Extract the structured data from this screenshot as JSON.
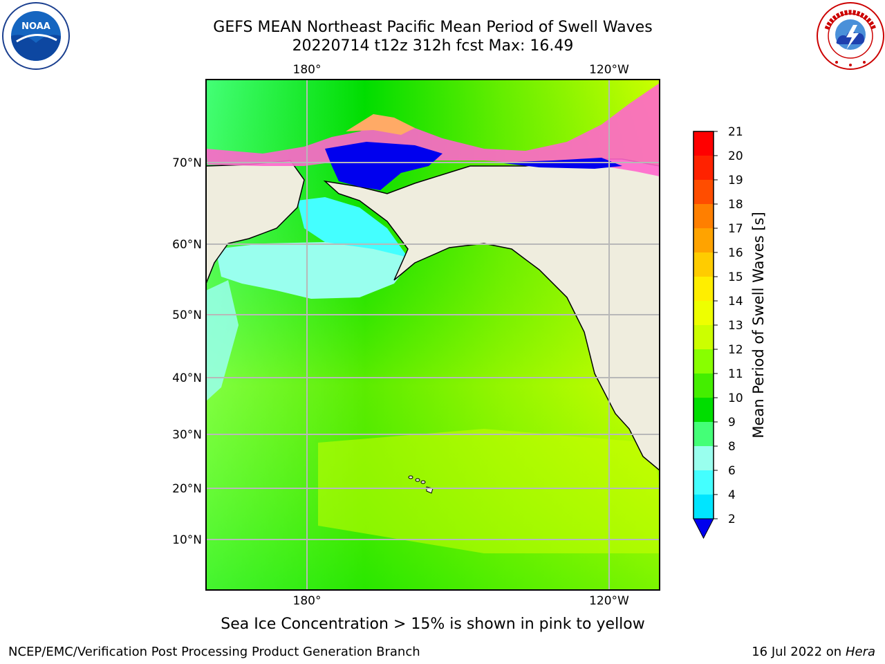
{
  "title": {
    "line1": "GEFS MEAN Northeast Pacific Mean Period of Swell Waves",
    "line2": "20220714 t12z 312h fcst   Max: 16.49"
  },
  "logos": {
    "left": "noaa-logo",
    "right": "national-weather-service-logo"
  },
  "map": {
    "longitude_labels_top": [
      "180°",
      "120°W"
    ],
    "longitude_labels_bottom": [
      "180°",
      "120°W"
    ],
    "latitude_labels": [
      "70°N",
      "60°N",
      "50°N",
      "40°N",
      "30°N",
      "20°N",
      "10°N"
    ],
    "land_color": "#efedde",
    "grid": true
  },
  "colorbar": {
    "label": "Mean Period of Swell Waves [s]",
    "ticks": [
      "21",
      "20",
      "19",
      "18",
      "17",
      "16",
      "15",
      "14",
      "13",
      "12",
      "11",
      "10",
      "9",
      "8",
      "6",
      "4",
      "2"
    ],
    "colors_top_to_bottom": [
      "#ff0000",
      "#ff2200",
      "#ff4d00",
      "#ff7f00",
      "#ffa300",
      "#ffcc00",
      "#ffee00",
      "#eeff00",
      "#ccff00",
      "#88ff00",
      "#44ee00",
      "#00dd00",
      "#44ff77",
      "#99ffee",
      "#44ffff",
      "#00e5ff",
      "#0088ff"
    ],
    "extend_color": "#0000ee"
  },
  "caption": "Sea Ice Concentration > 15% is shown in pink to yellow",
  "footer": {
    "left": "NCEP/EMC/Verification Post Processing Product Generation Branch",
    "right_date": "16 Jul 2022 on ",
    "right_machine": "Hera"
  }
}
